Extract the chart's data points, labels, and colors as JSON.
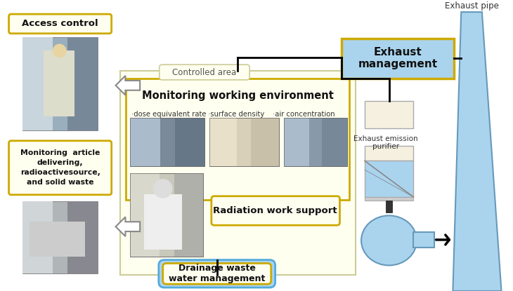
{
  "bg_color": "#ffffff",
  "controlled_area_bg": "#fffff0",
  "controlled_area_border": "#cccc99",
  "box_yellow_border": "#ccaa00",
  "box_yellow_bg": "#fffff0",
  "box_blue_border": "#55aadd",
  "box_blue_bg": "#aad4ee",
  "exhaust_pipe_color": "#aad4ee",
  "cream_box": "#f5f0e0",
  "labels": {
    "access_control": "Access control",
    "monitoring_article": "Monitoring  article\ndelivering,\nradioactivesource,\nand solid waste",
    "controlled_area": "Controlled area",
    "monitoring_working": "Monitoring working environment",
    "dose_eq": "·dose equivalent rate",
    "surface_density": "·surface density",
    "air_conc": "·air concentration",
    "radiation_work": "Radiation work support",
    "exhaust_management": "Exhaust\nmanagement",
    "exhaust_pipe": "Exhaust pipe",
    "exhaust_emission": "Exhaust emission\npurifier",
    "drainage": "Drainage waste\nwater management"
  },
  "photo1_colors": [
    "#8899aa",
    "#aabbcc",
    "#778899"
  ],
  "photo2_colors": [
    "#d4c8a8",
    "#c8bfa0",
    "#e8e0c8"
  ],
  "photo3_colors": [
    "#667788",
    "#aabbcc",
    "#99aaaa"
  ],
  "photo4_colors": [
    "#ccccbb",
    "#ddddcc",
    "#aaaaaa"
  ]
}
